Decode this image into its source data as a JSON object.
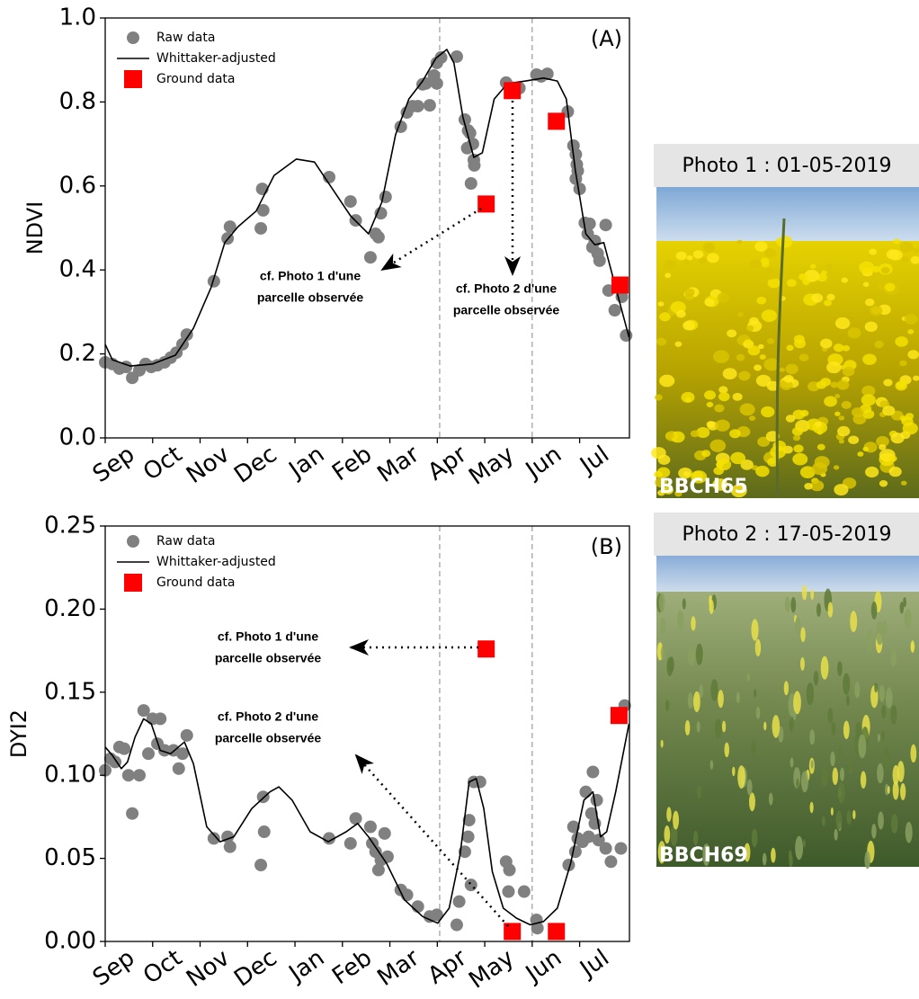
{
  "chart_data": [
    {
      "type": "scatter",
      "panel": "(A)",
      "y_label": "NDVI",
      "xlim": [
        0,
        11.05
      ],
      "ylim": [
        0,
        1.0
      ],
      "xticks": [
        {
          "value": 0,
          "label": "Sep"
        },
        {
          "value": 1,
          "label": "Oct"
        },
        {
          "value": 2,
          "label": "Nov"
        },
        {
          "value": 3,
          "label": "Dec"
        },
        {
          "value": 4,
          "label": "Jan"
        },
        {
          "value": 5,
          "label": "Feb"
        },
        {
          "value": 6,
          "label": "Mar"
        },
        {
          "value": 7,
          "label": "Apr"
        },
        {
          "value": 8,
          "label": "May"
        },
        {
          "value": 9,
          "label": "Jun"
        },
        {
          "value": 10,
          "label": "Jul"
        }
      ],
      "yticks": [
        {
          "value": 0,
          "label": "0.0"
        },
        0.2,
        0.4,
        0.6,
        0.8,
        {
          "value": 1,
          "label": "1.0"
        }
      ],
      "vlines": [
        7.05,
        9.0
      ],
      "series": [
        {
          "name": "Raw data",
          "marker": "circle",
          "color": "#808080",
          "x": [
            0.0,
            0.15,
            0.3,
            0.44,
            0.57,
            0.72,
            0.85,
            0.97,
            1.1,
            1.25,
            1.38,
            1.5,
            1.63,
            1.72,
            2.29,
            2.58,
            2.63,
            3.28,
            3.33,
            3.31,
            4.72,
            5.17,
            5.28,
            5.59,
            5.7,
            5.76,
            5.81,
            5.91,
            6.23,
            6.36,
            6.48,
            6.59,
            6.69,
            6.76,
            6.84,
            6.93,
            6.99,
            6.99,
            7.08,
            7.41,
            7.58,
            7.65,
            7.63,
            7.69,
            7.75,
            7.77,
            7.71,
            7.78,
            8.45,
            8.54,
            8.73,
            9.09,
            9.19,
            9.32,
            9.75,
            9.87,
            9.92,
            9.94,
            9.96,
            9.92,
            10.0,
            10.11,
            10.17,
            10.21,
            10.27,
            10.32,
            10.38,
            10.42,
            10.55,
            10.61,
            10.74,
            10.89,
            10.98
          ],
          "values": [
            0.18,
            0.176,
            0.165,
            0.169,
            0.143,
            0.161,
            0.176,
            0.169,
            0.173,
            0.18,
            0.191,
            0.203,
            0.223,
            0.246,
            0.373,
            0.475,
            0.503,
            0.499,
            0.542,
            0.593,
            0.621,
            0.563,
            0.518,
            0.43,
            0.486,
            0.478,
            0.535,
            0.574,
            0.741,
            0.775,
            0.79,
            0.79,
            0.842,
            0.844,
            0.792,
            0.863,
            0.844,
            0.893,
            0.906,
            0.908,
            0.758,
            0.732,
            0.69,
            0.726,
            0.7,
            0.662,
            0.606,
            0.649,
            0.846,
            0.835,
            0.833,
            0.865,
            0.861,
            0.867,
            0.777,
            0.696,
            0.675,
            0.651,
            0.636,
            0.617,
            0.593,
            0.512,
            0.486,
            0.51,
            0.454,
            0.469,
            0.439,
            0.422,
            0.507,
            0.351,
            0.304,
            0.336,
            0.244
          ]
        },
        {
          "name": "Whittaker-adjusted",
          "marker": "line",
          "color": "#000000",
          "x": [
            0,
            0.15,
            0.53,
            1.0,
            1.48,
            1.86,
            2.23,
            2.52,
            2.8,
            3.18,
            3.56,
            4.03,
            4.41,
            4.79,
            5.17,
            5.55,
            5.83,
            6.12,
            6.4,
            6.69,
            6.97,
            7.2,
            7.35,
            7.54,
            7.77,
            7.95,
            8.2,
            8.48,
            8.86,
            9.24,
            9.53,
            9.72,
            9.91,
            10.13,
            10.32,
            10.51,
            10.76,
            11.04
          ],
          "values": [
            0.223,
            0.186,
            0.171,
            0.176,
            0.197,
            0.261,
            0.358,
            0.465,
            0.503,
            0.54,
            0.625,
            0.664,
            0.657,
            0.593,
            0.529,
            0.486,
            0.561,
            0.722,
            0.807,
            0.85,
            0.904,
            0.925,
            0.893,
            0.764,
            0.668,
            0.679,
            0.807,
            0.844,
            0.85,
            0.857,
            0.85,
            0.807,
            0.636,
            0.486,
            0.46,
            0.465,
            0.358,
            0.24
          ]
        },
        {
          "name": "Ground data",
          "marker": "square",
          "color": "#ff0000",
          "x": [
            8.03,
            8.58,
            9.51,
            10.85
          ],
          "values": [
            0.557,
            0.827,
            0.754,
            0.364
          ]
        }
      ],
      "annotations": [
        {
          "text": [
            "cf. Photo 1 d'une",
            "parcelle observée"
          ]
        },
        {
          "text": [
            "cf. Photo 2 d'une",
            "parcelle observée"
          ]
        }
      ]
    },
    {
      "type": "scatter",
      "panel": "(B)",
      "y_label": "DYI2",
      "xlim": [
        0,
        11.05
      ],
      "ylim": [
        0,
        0.25
      ],
      "xticks": [
        {
          "value": 0,
          "label": "Sep"
        },
        {
          "value": 1,
          "label": "Oct"
        },
        {
          "value": 2,
          "label": "Nov"
        },
        {
          "value": 3,
          "label": "Dec"
        },
        {
          "value": 4,
          "label": "Jan"
        },
        {
          "value": 5,
          "label": "Feb"
        },
        {
          "value": 6,
          "label": "Mar"
        },
        {
          "value": 7,
          "label": "Apr"
        },
        {
          "value": 8,
          "label": "May"
        },
        {
          "value": 9,
          "label": "Jun"
        },
        {
          "value": 10,
          "label": "Jul"
        }
      ],
      "yticks": [
        {
          "value": 0,
          "label": "0.00"
        },
        0.05,
        {
          "value": 0.1,
          "label": "0.10"
        },
        0.15,
        {
          "value": 0.2,
          "label": "0.20"
        },
        0.25
      ],
      "vlines": [
        7.05,
        9.0
      ],
      "series": [
        {
          "name": "Raw data",
          "marker": "circle",
          "color": "#808080",
          "x": [
            0,
            0.11,
            0.21,
            0.3,
            0.4,
            0.49,
            0.57,
            0.72,
            0.81,
            0.91,
            1.0,
            1.1,
            1.16,
            1.25,
            1.44,
            1.55,
            1.63,
            1.72,
            2.29,
            2.58,
            2.63,
            3.28,
            3.33,
            3.35,
            4.72,
            5.17,
            5.28,
            5.59,
            5.63,
            5.7,
            5.76,
            5.81,
            5.89,
            5.95,
            6.23,
            6.36,
            6.59,
            6.84,
            6.99,
            7.41,
            7.46,
            7.58,
            7.65,
            7.67,
            7.71,
            7.77,
            7.9,
            8.45,
            8.52,
            8.5,
            8.83,
            9.09,
            9.11,
            9.77,
            9.87,
            9.91,
            9.96,
            10.06,
            10.13,
            10.19,
            10.25,
            10.28,
            10.32,
            10.36,
            10.4,
            10.55,
            10.66,
            10.87,
            10.95
          ],
          "values": [
            0.103,
            0.11,
            0.108,
            0.117,
            0.116,
            0.1,
            0.077,
            0.1,
            0.139,
            0.113,
            0.134,
            0.119,
            0.134,
            0.115,
            0.115,
            0.104,
            0.113,
            0.124,
            0.062,
            0.063,
            0.057,
            0.046,
            0.087,
            0.066,
            0.062,
            0.059,
            0.074,
            0.069,
            0.059,
            0.054,
            0.043,
            0.049,
            0.065,
            0.051,
            0.031,
            0.028,
            0.021,
            0.015,
            0.016,
            0.01,
            0.024,
            0.054,
            0.063,
            0.073,
            0.034,
            0.096,
            0.096,
            0.048,
            0.043,
            0.03,
            0.03,
            0.013,
            0.008,
            0.046,
            0.069,
            0.054,
            0.062,
            0.06,
            0.09,
            0.063,
            0.077,
            0.102,
            0.071,
            0.085,
            0.061,
            0.056,
            0.048,
            0.056,
            0.142
          ]
        },
        {
          "name": "Whittaker-adjusted",
          "marker": "line",
          "color": "#000000",
          "x": [
            0,
            0.15,
            0.34,
            0.47,
            0.63,
            0.81,
            0.97,
            1.16,
            1.38,
            1.67,
            1.86,
            2.14,
            2.42,
            2.71,
            3.09,
            3.47,
            3.66,
            3.94,
            4.32,
            4.7,
            5.08,
            5.32,
            5.55,
            5.93,
            6.31,
            6.69,
            7.01,
            7.25,
            7.48,
            7.67,
            7.82,
            7.98,
            8.16,
            8.39,
            8.67,
            8.96,
            9.24,
            9.53,
            9.81,
            10.09,
            10.28,
            10.44,
            10.57,
            10.76,
            11.04
          ],
          "values": [
            0.117,
            0.112,
            0.104,
            0.108,
            0.123,
            0.134,
            0.131,
            0.115,
            0.113,
            0.12,
            0.107,
            0.069,
            0.06,
            0.063,
            0.08,
            0.09,
            0.093,
            0.085,
            0.066,
            0.06,
            0.066,
            0.071,
            0.063,
            0.047,
            0.025,
            0.015,
            0.011,
            0.02,
            0.052,
            0.096,
            0.098,
            0.08,
            0.042,
            0.02,
            0.014,
            0.01,
            0.012,
            0.02,
            0.047,
            0.085,
            0.09,
            0.063,
            0.066,
            0.09,
            0.131
          ]
        },
        {
          "name": "Ground data",
          "marker": "square",
          "color": "#ff0000",
          "x": [
            8.03,
            8.58,
            9.51,
            10.83
          ],
          "values": [
            0.176,
            0.006,
            0.006,
            0.136
          ]
        }
      ],
      "annotations": [
        {
          "text": [
            "cf. Photo 1 d'une",
            "parcelle observée"
          ]
        },
        {
          "text": [
            "cf. Photo 2 d'une",
            "parcelle observée"
          ]
        }
      ]
    }
  ],
  "photos": [
    {
      "title": "Photo 1 : 01-05-2019",
      "caption": "BBCH65"
    },
    {
      "title": "Photo 2 : 17-05-2019",
      "caption": "BBCH69"
    }
  ]
}
